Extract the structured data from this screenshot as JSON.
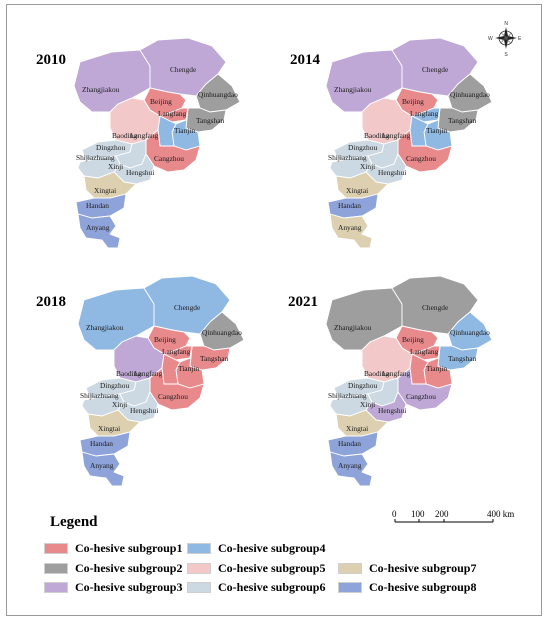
{
  "panels": [
    {
      "year": "2010",
      "assignments": {
        "Zhangjiakou": 3,
        "Chengde": 3,
        "Qinhuangdao": 2,
        "Beijing": 1,
        "Langfang_N": 1,
        "Tangshan": 2,
        "Tianjin": 4,
        "Baoding": 5,
        "Langfang_S": 4,
        "Cangzhou": 1,
        "Dingzhou": 6,
        "Shijiazhuang": 6,
        "Xinji": 6,
        "Hengshui": 6,
        "Xingtai": 7,
        "Handan": 8,
        "Anyang": 8
      }
    },
    {
      "year": "2014",
      "assignments": {
        "Zhangjiakou": 3,
        "Chengde": 3,
        "Qinhuangdao": 2,
        "Beijing": 1,
        "Langfang_N": 4,
        "Tangshan": 2,
        "Tianjin": 4,
        "Baoding": 5,
        "Langfang_S": 4,
        "Cangzhou": 1,
        "Dingzhou": 6,
        "Shijiazhuang": 6,
        "Xinji": 6,
        "Hengshui": 6,
        "Xingtai": 7,
        "Handan": 8,
        "Anyang": 7
      }
    },
    {
      "year": "2018",
      "assignments": {
        "Zhangjiakou": 4,
        "Chengde": 4,
        "Qinhuangdao": 2,
        "Beijing": 1,
        "Langfang_N": 1,
        "Tangshan": 1,
        "Tianjin": 1,
        "Baoding": 3,
        "Langfang_S": 1,
        "Cangzhou": 1,
        "Dingzhou": 6,
        "Shijiazhuang": 6,
        "Xinji": 6,
        "Hengshui": 6,
        "Xingtai": 7,
        "Handan": 8,
        "Anyang": 8
      }
    },
    {
      "year": "2021",
      "assignments": {
        "Zhangjiakou": 2,
        "Chengde": 2,
        "Qinhuangdao": 4,
        "Beijing": 1,
        "Langfang_N": 1,
        "Tangshan": 4,
        "Tianjin": 1,
        "Baoding": 5,
        "Langfang_S": 1,
        "Cangzhou": 3,
        "Dingzhou": 6,
        "Shijiazhuang": 6,
        "Xinji": 6,
        "Hengshui": 3,
        "Xingtai": 7,
        "Handan": 8,
        "Anyang": 8
      }
    }
  ],
  "city_labels": {
    "Zhangjiakou": "Zhangjiakou",
    "Chengde": "Chengde",
    "Qinhuangdao": "Qinhuangdao",
    "Beijing": "Beijing",
    "Langfang_N": "Langfang",
    "Tangshan": "Tangshan",
    "Tianjin": "Tianjin",
    "Baoding": "Baoding",
    "Langfang_S": "Langfang",
    "Cangzhou": "Cangzhou",
    "Dingzhou": "Dingzhou",
    "Shijiazhuang": "Shijiazhuang",
    "Xinji": "Xinji",
    "Hengshui": "Hengshui",
    "Xingtai": "Xingtai",
    "Handan": "Handan",
    "Anyang": "Anyang"
  },
  "legend": {
    "title": "Legend",
    "items": [
      {
        "group": 1,
        "label": "Co-hesive subgroup1",
        "color": "#e8898c"
      },
      {
        "group": 2,
        "label": "Co-hesive subgroup2",
        "color": "#9e9e9e"
      },
      {
        "group": 3,
        "label": "Co-hesive subgroup3",
        "color": "#bfa8d6"
      },
      {
        "group": 4,
        "label": "Co-hesive subgroup4",
        "color": "#8fb9e3"
      },
      {
        "group": 5,
        "label": "Co-hesive subgroup5",
        "color": "#f2c8c9"
      },
      {
        "group": 6,
        "label": "Co-hesive subgroup6",
        "color": "#cdd9e2"
      },
      {
        "group": 7,
        "label": "Co-hesive subgroup7",
        "color": "#ddd0b0"
      },
      {
        "group": 8,
        "label": "Co-hesive subgroup8",
        "color": "#8ea3d9"
      }
    ]
  },
  "scale_bar": {
    "ticks": [
      "0",
      "100",
      "200"
    ],
    "end_label": "400 km"
  },
  "compass": {
    "north": "N",
    "south": "S",
    "east": "E",
    "west": "W"
  },
  "colors": {
    "border": "#ffffff",
    "outline": "#7a7a7a"
  }
}
